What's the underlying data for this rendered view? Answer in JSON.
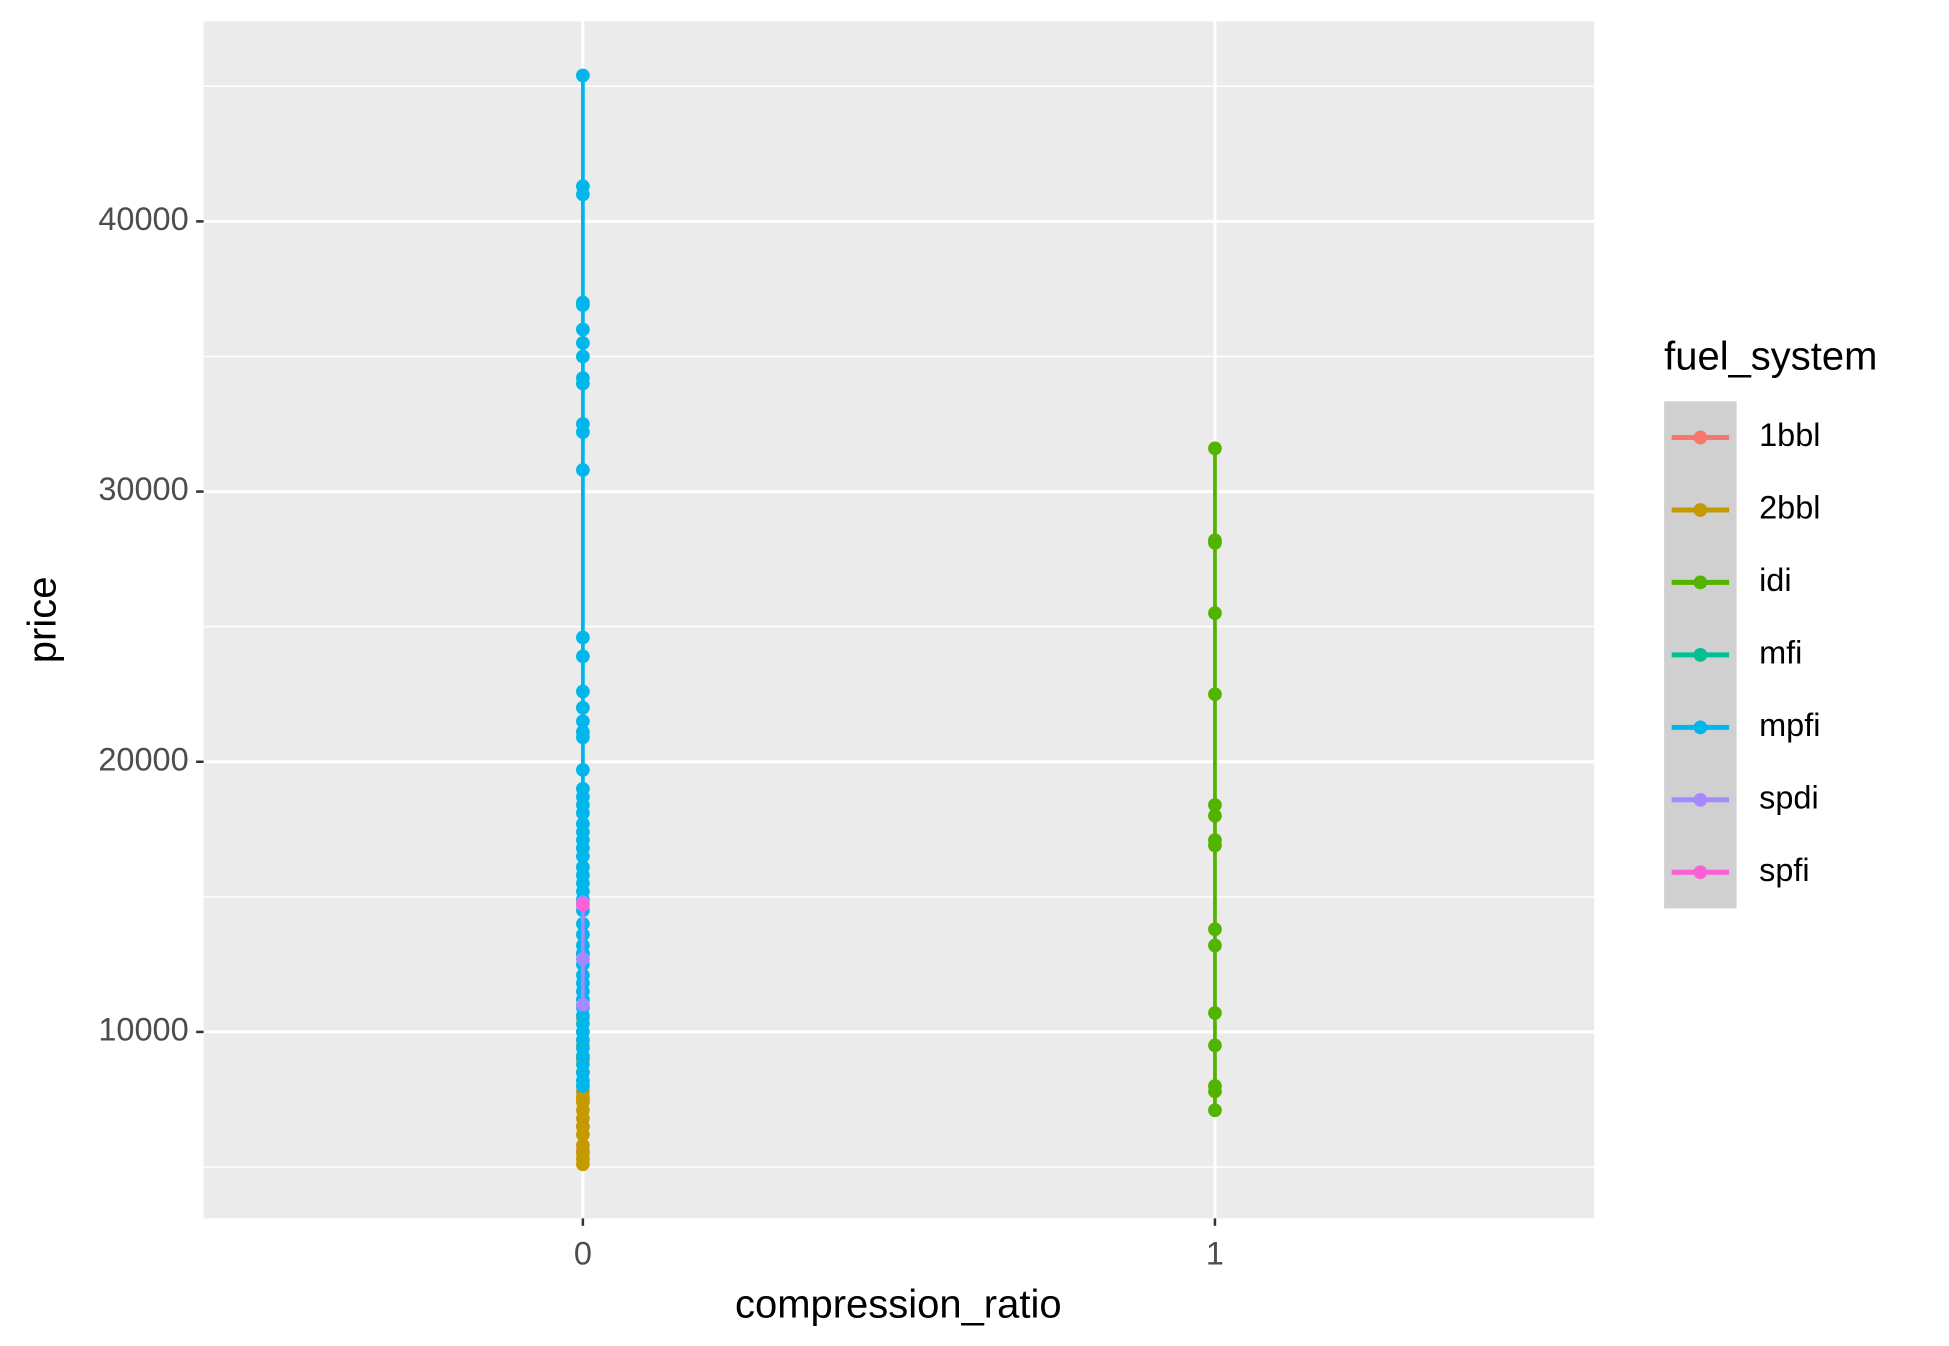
{
  "chart_data": {
    "type": "scatter",
    "x_label": "compression_ratio",
    "y_label": "price",
    "categories": [
      "0",
      "1"
    ],
    "ylim": [
      3100,
      47400
    ],
    "yticks": [
      10000,
      20000,
      30000,
      40000
    ],
    "yminor": [
      5000,
      15000,
      25000,
      35000,
      45000
    ],
    "grid": true,
    "legend": {
      "title": "fuel_system",
      "position": "right"
    },
    "series": [
      {
        "name": "1bbl",
        "color": "#F8766D",
        "x": [
          "0",
          "0",
          "0",
          "0"
        ],
        "values": [
          5600,
          6500,
          7500,
          9000
        ]
      },
      {
        "name": "2bbl",
        "color": "#C49A00",
        "x": [
          "0",
          "0",
          "0",
          "0",
          "0",
          "0",
          "0",
          "0",
          "0",
          "0",
          "0",
          "0",
          "0",
          "0",
          "0",
          "0",
          "0"
        ],
        "values": [
          5100,
          5300,
          5500,
          5800,
          6200,
          6500,
          6800,
          7100,
          7400,
          7600,
          7800,
          8000,
          8500,
          9000,
          9500,
          10000,
          10500
        ]
      },
      {
        "name": "idi",
        "color": "#53B400",
        "x": [
          "1",
          "1",
          "1",
          "1",
          "1",
          "1",
          "1",
          "1",
          "1",
          "1",
          "1",
          "1",
          "1",
          "1",
          "1",
          "1"
        ],
        "values": [
          7100,
          7800,
          8000,
          9500,
          10700,
          13200,
          13800,
          16900,
          17100,
          18000,
          18400,
          22500,
          25500,
          28100,
          28200,
          31600
        ]
      },
      {
        "name": "mfi",
        "color": "#00C094",
        "x": [
          "0"
        ],
        "values": [
          12900
        ]
      },
      {
        "name": "mpfi",
        "color": "#00B6EB",
        "x": [
          "0",
          "0",
          "0",
          "0",
          "0",
          "0",
          "0",
          "0",
          "0",
          "0",
          "0",
          "0",
          "0",
          "0",
          "0",
          "0",
          "0",
          "0",
          "0",
          "0",
          "0",
          "0",
          "0",
          "0",
          "0",
          "0",
          "0",
          "0",
          "0",
          "0",
          "0",
          "0",
          "0",
          "0",
          "0",
          "0",
          "0",
          "0",
          "0",
          "0",
          "0",
          "0",
          "0",
          "0",
          "0",
          "0",
          "0",
          "0",
          "0",
          "0",
          "0",
          "0",
          "0",
          "0",
          "0",
          "0"
        ],
        "values": [
          8000,
          8200,
          8500,
          8800,
          9100,
          9400,
          9700,
          10000,
          10300,
          10600,
          10900,
          11200,
          11500,
          11800,
          12100,
          12500,
          12900,
          13200,
          13600,
          14000,
          14500,
          14900,
          15200,
          15500,
          15800,
          16100,
          16500,
          16800,
          17100,
          17400,
          17700,
          18100,
          18400,
          18700,
          19000,
          19700,
          20900,
          21100,
          21500,
          22000,
          22600,
          23900,
          24600,
          30800,
          32200,
          32500,
          34000,
          34200,
          35000,
          35500,
          36000,
          36900,
          37000,
          41000,
          41300,
          45400
        ]
      },
      {
        "name": "spdi",
        "color": "#A58AFF",
        "x": [
          "0",
          "0",
          "0"
        ],
        "values": [
          11000,
          12700,
          14800
        ]
      },
      {
        "name": "spfi",
        "color": "#FB61D7",
        "x": [
          "0"
        ],
        "values": [
          14700
        ]
      }
    ]
  }
}
